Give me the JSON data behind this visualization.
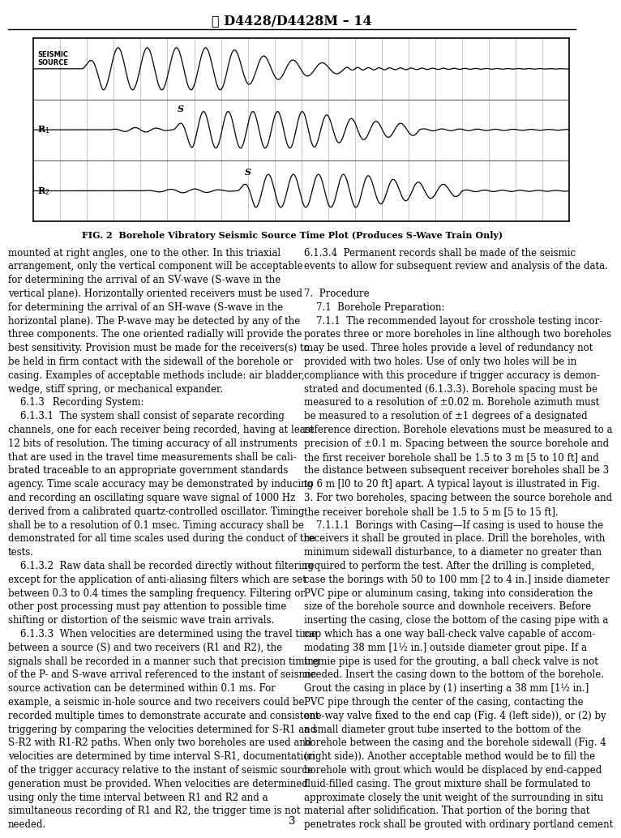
{
  "title": "D4428/D4428M – 14",
  "fig_caption": "FIG. 2  Borehole Vibratory Seismic Source Time Plot (Produces S-Wave Train Only)",
  "page_number": "3",
  "background_color": "#ffffff",
  "left_col_paragraphs": [
    "mounted at right angles, one to the other. In this triaxial arrangement, only the vertical component will be acceptable for determining the arrival of an SV-wave (S-wave in the vertical plane). Horizontally oriented receivers must be used for determining the arrival of an SH-wave (S-wave in the horizontal plane). The P-wave may be detected by any of the three components. The one oriented radially will provide the best sensitivity. Provision must be made for the receivers(s) to be held in firm contact with the sidewall of the borehole or casing. Examples of acceptable methods include: air bladder, wedge, stiff spring, or mechanical expander.",
    "6.1.3  Recording System:",
    "6.1.3.1  The system shall consist of separate recording channels, one for each receiver being recorded, having at least 12 bits of resolution. The timing accuracy of all instruments that are used in the travel time measurements shall be calibrated traceable to an appropriate government standards agency. Time scale accuracy may be demonstrated by inducing and recording an oscillating square wave signal of 1000 Hz derived from a calibrated quartz-controlled oscillator. Timing shall be to a resolution of 0.1 msec. Timing accuracy shall be demonstrated for all time scales used during the conduct of the tests.",
    "6.1.3.2  Raw data shall be recorded directly without filtering except for the application of anti-aliasing filters which are set between 0.3 to 0.4 times the sampling frequency. Filtering or other post processing must pay attention to possible time shifting or distortion of the seismic wave train arrivals.",
    "6.1.3.3  When velocities are determined using the travel time between a source (S) and two receivers (R1 and R2), the signals shall be recorded in a manner such that precision timing of the P- and S-wave arrival referenced to the instant of seismic source activation can be determined within 0.1 ms. For example, a seismic in-hole source and two receivers could be recorded multiple times to demonstrate accurate and consistent triggering by comparing the velocities determined for S-R1 and S-R2 with R1-R2 paths. When only two boreholes are used and velocities are determined by time interval S-R1, documentation of the trigger accuracy relative to the instant of seismic source generation must be provided. When velocities are determined using only the time interval between R1 and R2 and a simultaneous recording of R1 and R2, the trigger time is not needed."
  ],
  "right_col_paragraphs": [
    "6.1.3.4  Permanent records shall be made of the seismic events to allow for subsequent review and analysis of the data.",
    "7.  Procedure",
    "7.1  Borehole Preparation:",
    "7.1.1  The recommended layout for crosshole testing incorporates three or more boreholes in line although two boreholes may be used. Three holes provide a level of redundancy not provided with two holes. Use of only two holes will be in compliance with this procedure if trigger accuracy is demonstrated and documented (6.1.3.3). Borehole spacing must be measured to a resolution of ±0.02 m. Borehole azimuth must be measured to a resolution of ±1 degrees of a designated reference direction. Borehole elevations must be measured to a precision of ±0.1 m. Spacing between the source borehole and the first receiver borehole shall be 1.5 to 3 m [5 to 10 ft] and the distance between subsequent receiver boreholes shall be 3 to 6 m [l0 to 20 ft] apart. A typical layout is illustrated in Fig. 3. For two boreholes, spacing between the source borehole and the receiver borehole shall be 1.5 to 5 m [5 to 15 ft].",
    "7.1.1.1  Borings with Casing—If casing is used to house the receivers it shall be grouted in place. Drill the boreholes, with minimum sidewall disturbance, to a diameter no greater than required to perform the test. After the drilling is completed, case the borings with 50 to 100 mm [2 to 4 in.] inside diameter PVC pipe or aluminum casing, taking into consideration the size of the borehole source and downhole receivers. Before inserting the casing, close the bottom of the casing pipe with a cap which has a one way ball-check valve capable of accommodating 38 mm [1½ in.] outside diameter grout pipe. If a tremie pipe is used for the grouting, a ball check valve is not needed. Insert the casing down to the bottom of the borehole. Grout the casing in place by (1) inserting a 38 mm [1½ in.] PVC pipe through the center of the casing, contacting the one-way valve fixed to the end cap (Fig. 4 (left side)), or (2) by a small diameter grout tube inserted to the bottom of the borehole between the casing and the borehole sidewall (Fig. 4 (right side)). Another acceptable method would be to fill the borehole with grout which would be displaced by end-capped fluid-filled casing. The grout mixture shall be formulated to approximate closely the unit weight of the surrounding in situ material after solidification. That portion of the boring that penetrates rock shall be grouted with ordinary portland cement"
  ],
  "text_fontsize": 8.5,
  "title_fontsize": 11.5,
  "caption_fontsize": 8.0,
  "page_num_fontsize": 9.5
}
